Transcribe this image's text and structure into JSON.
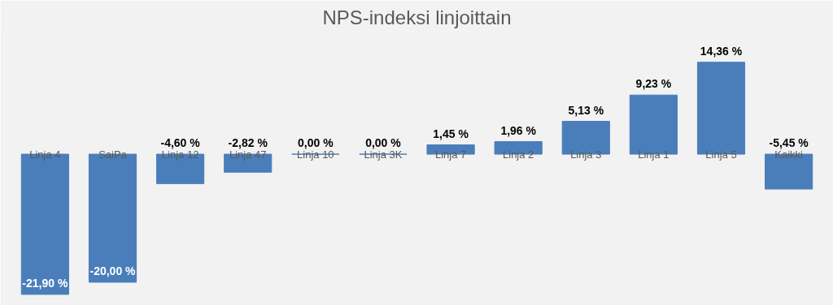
{
  "chart_data": {
    "type": "bar",
    "title": "NPS-indeksi linjoittain",
    "categories": [
      "Linja 4",
      "SaiPa",
      "Linja 12",
      "Linja 47",
      "Linja 10",
      "Linja 3K",
      "Linja 7",
      "Linja 2",
      "Linja 3",
      "Linja 1",
      "Linja 5",
      "Kaikki"
    ],
    "values": [
      -21.9,
      -20.0,
      -4.6,
      -2.82,
      0.0,
      0.0,
      1.45,
      1.96,
      5.13,
      9.23,
      14.36,
      -5.45
    ],
    "value_labels": [
      "-21,90 %",
      "-20,00 %",
      "-4,60 %",
      "-2,82 %",
      "0,00 %",
      "0,00 %",
      "1,45 %",
      "1,96 %",
      "5,13 %",
      "9,23 %",
      "14,36 %",
      "-5,45 %"
    ],
    "color": "#4a7ebb",
    "grid": false
  }
}
